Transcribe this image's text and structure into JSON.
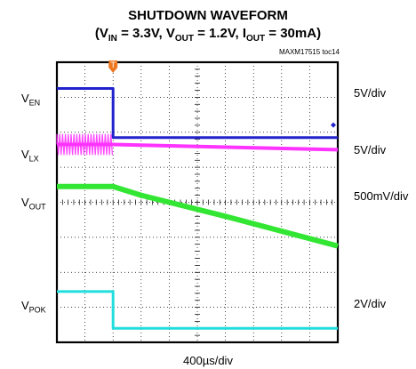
{
  "chart_data": {
    "type": "line",
    "title": "SHUTDOWN WAVEFORM",
    "subtitle_parts": [
      {
        "t": "(V"
      },
      {
        "sub": "IN"
      },
      {
        "t": " = 3.3V, V"
      },
      {
        "sub": "OUT"
      },
      {
        "t": " = 1.2V, I"
      },
      {
        "sub": "OUT"
      },
      {
        "t": " = 30mA)"
      }
    ],
    "tag": "MAXM17515 toc14",
    "x_scale": "400µs/div",
    "x_div": 10,
    "y_div": 8,
    "grid": true,
    "trigger_label": "T",
    "trigger_x": 2.0,
    "series": [
      {
        "name_main": "V",
        "name_sub": "EN",
        "scale": "5V/div",
        "color": "#2222cc",
        "x": [
          0,
          2.0,
          2.0,
          10
        ],
        "y": [
          7.25,
          7.25,
          5.85,
          5.85
        ]
      },
      {
        "name_main": "V",
        "name_sub": "LX",
        "scale": "5V/div",
        "color": "#ff33ff",
        "x": [
          0,
          2.0,
          10
        ],
        "y": [
          5.65,
          5.65,
          5.5
        ],
        "switching_until": 2.0,
        "switching_amp": 0.3
      },
      {
        "name_main": "V",
        "name_sub": "OUT",
        "scale": "500mV/div",
        "color": "#33e633",
        "x": [
          0,
          2.0,
          3.0,
          6.0,
          10
        ],
        "y": [
          4.45,
          4.45,
          4.2,
          3.6,
          2.75
        ]
      },
      {
        "name_main": "V",
        "name_sub": "POK",
        "scale": "2V/div",
        "color": "#22dddd",
        "x": [
          0,
          2.0,
          2.0,
          10
        ],
        "y": [
          1.45,
          1.45,
          0.4,
          0.4
        ]
      }
    ]
  }
}
